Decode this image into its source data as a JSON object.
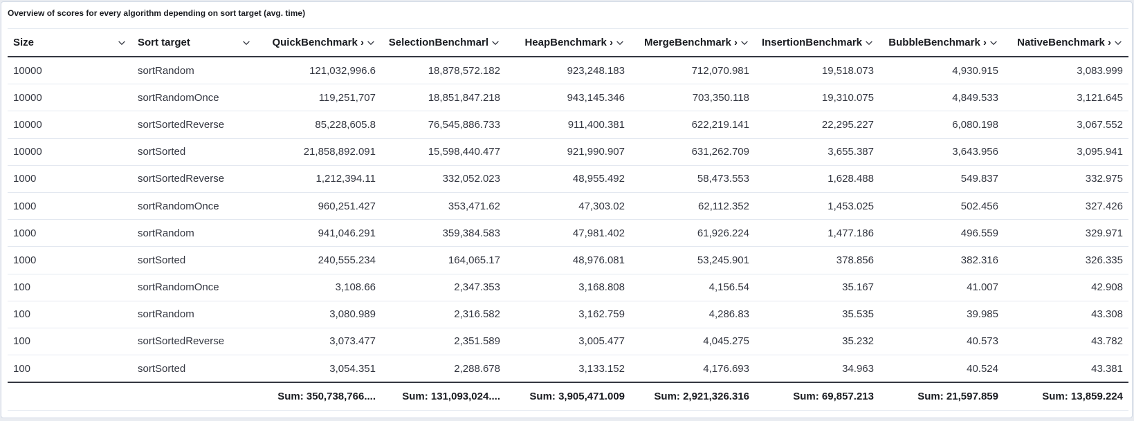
{
  "panel": {
    "title": "Overview of scores for every algorithm depending on sort target (avg. time)"
  },
  "table": {
    "columns": [
      {
        "label": "Size",
        "align": "left"
      },
      {
        "label": "Sort target",
        "align": "left"
      },
      {
        "label": "QuickBenchmark ›",
        "align": "right"
      },
      {
        "label": "SelectionBenchmarl",
        "align": "right"
      },
      {
        "label": "HeapBenchmark ›",
        "align": "right"
      },
      {
        "label": "MergeBenchmark ›",
        "align": "right"
      },
      {
        "label": "InsertionBenchmark",
        "align": "right"
      },
      {
        "label": "BubbleBenchmark ›",
        "align": "right"
      },
      {
        "label": "NativeBenchmark ›",
        "align": "right"
      }
    ],
    "rows": [
      [
        "10000",
        "sortRandom",
        "121,032,996.6",
        "18,878,572.182",
        "923,248.183",
        "712,070.981",
        "19,518.073",
        "4,930.915",
        "3,083.999"
      ],
      [
        "10000",
        "sortRandomOnce",
        "119,251,707",
        "18,851,847.218",
        "943,145.346",
        "703,350.118",
        "19,310.075",
        "4,849.533",
        "3,121.645"
      ],
      [
        "10000",
        "sortSortedReverse",
        "85,228,605.8",
        "76,545,886.733",
        "911,400.381",
        "622,219.141",
        "22,295.227",
        "6,080.198",
        "3,067.552"
      ],
      [
        "10000",
        "sortSorted",
        "21,858,892.091",
        "15,598,440.477",
        "921,990.907",
        "631,262.709",
        "3,655.387",
        "3,643.956",
        "3,095.941"
      ],
      [
        "1000",
        "sortSortedReverse",
        "1,212,394.11",
        "332,052.023",
        "48,955.492",
        "58,473.553",
        "1,628.488",
        "549.837",
        "332.975"
      ],
      [
        "1000",
        "sortRandomOnce",
        "960,251.427",
        "353,471.62",
        "47,303.02",
        "62,112.352",
        "1,453.025",
        "502.456",
        "327.426"
      ],
      [
        "1000",
        "sortRandom",
        "941,046.291",
        "359,384.583",
        "47,981.402",
        "61,926.224",
        "1,477.186",
        "496.559",
        "329.971"
      ],
      [
        "1000",
        "sortSorted",
        "240,555.234",
        "164,065.17",
        "48,976.081",
        "53,245.901",
        "378.856",
        "382.316",
        "326.335"
      ],
      [
        "100",
        "sortRandomOnce",
        "3,108.66",
        "2,347.353",
        "3,168.808",
        "4,156.54",
        "35.167",
        "41.007",
        "42.908"
      ],
      [
        "100",
        "sortRandom",
        "3,080.989",
        "2,316.582",
        "3,162.759",
        "4,286.83",
        "35.535",
        "39.985",
        "43.308"
      ],
      [
        "100",
        "sortSortedReverse",
        "3,073.477",
        "2,351.589",
        "3,005.477",
        "4,045.275",
        "35.232",
        "40.573",
        "43.782"
      ],
      [
        "100",
        "sortSorted",
        "3,054.351",
        "2,288.678",
        "3,133.152",
        "4,176.693",
        "34.963",
        "40.524",
        "43.381"
      ]
    ],
    "footer": [
      "",
      "",
      "Sum: 350,738,766....",
      "Sum: 131,093,024....",
      "Sum: 3,905,471.009",
      "Sum: 2,921,326.316",
      "Sum: 69,857.213",
      "Sum: 21,597.859",
      "Sum: 13,859.224"
    ]
  },
  "icons": {
    "column_menu": "chevron-down-icon"
  },
  "colors": {
    "text": "#343741",
    "header_text": "#1a1c21",
    "border": "#e3e8f0",
    "strong_border": "#343741"
  }
}
